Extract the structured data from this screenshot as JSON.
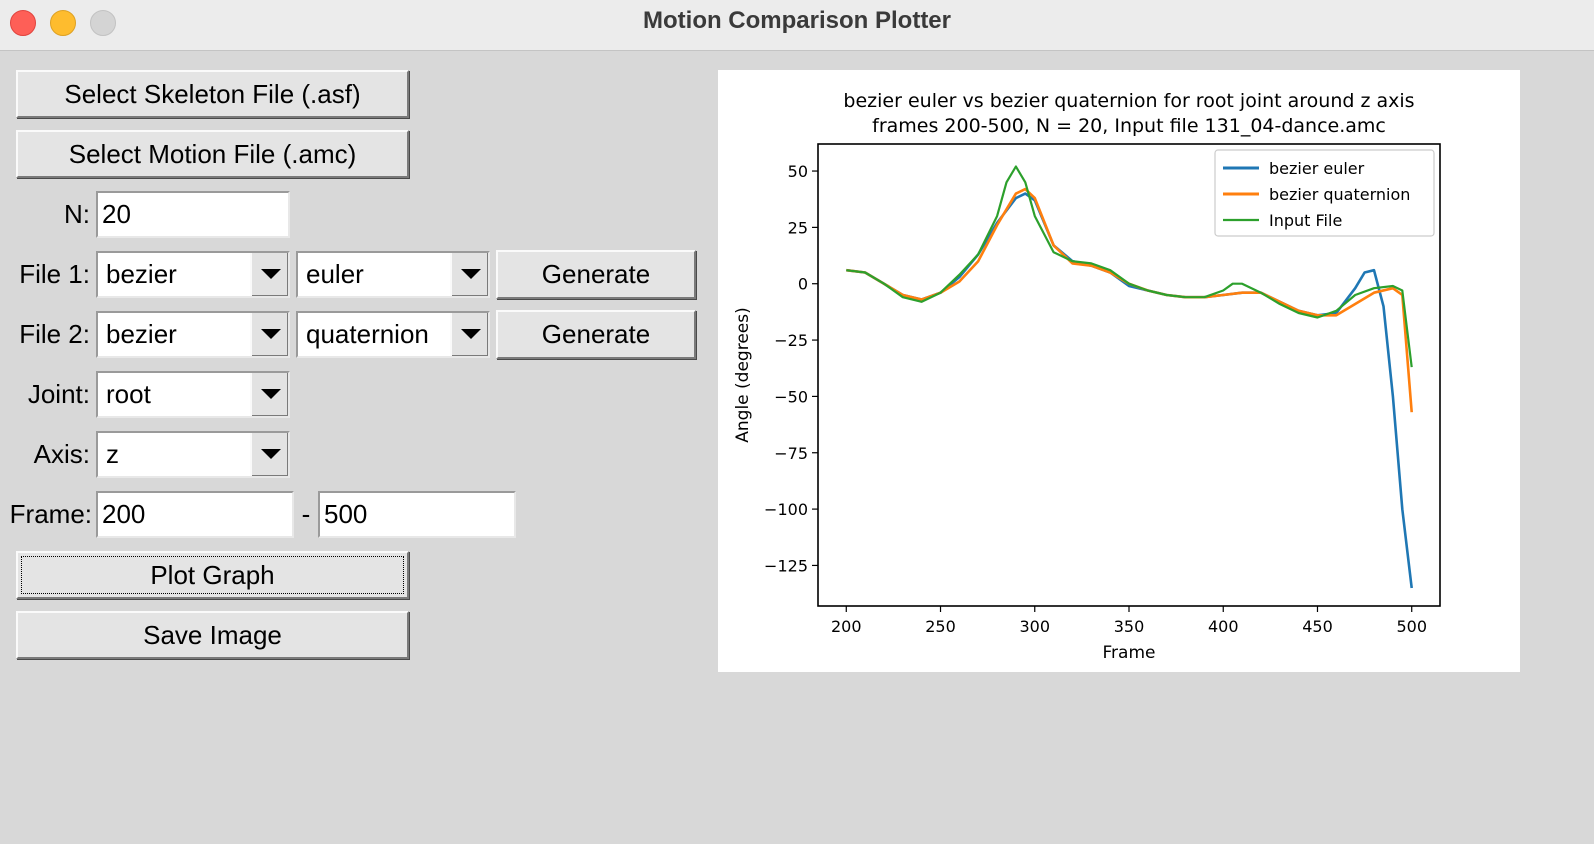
{
  "window": {
    "title": "Motion Comparison Plotter"
  },
  "buttons": {
    "select_skeleton": "Select Skeleton File (.asf)",
    "select_motion": "Select Motion File (.amc)",
    "generate1": "Generate",
    "generate2": "Generate",
    "plot": "Plot Graph",
    "save": "Save Image"
  },
  "form": {
    "n_label": "N:",
    "n_value": "20",
    "file1_label": "File 1:",
    "file1_method": "bezier",
    "file1_rep": "euler",
    "file2_label": "File 2:",
    "file2_method": "bezier",
    "file2_rep": "quaternion",
    "joint_label": "Joint:",
    "joint_value": "root",
    "axis_label": "Axis:",
    "axis_value": "z",
    "frame_label": "Frame:",
    "frame_start": "200",
    "frame_sep": "-",
    "frame_end": "500"
  },
  "chart_data": {
    "type": "line",
    "title": "bezier euler vs bezier quaternion for root joint around z axis",
    "subtitle": "frames 200-500, N = 20, Input file 131_04-dance.amc",
    "xlabel": "Frame",
    "ylabel": "Angle (degrees)",
    "xlim": [
      185,
      515
    ],
    "ylim": [
      -143,
      62
    ],
    "xticks": [
      200,
      250,
      300,
      350,
      400,
      450,
      500
    ],
    "yticks": [
      50,
      25,
      0,
      -25,
      -50,
      -75,
      -100,
      -125
    ],
    "xtick_labels": [
      "200",
      "250",
      "300",
      "350",
      "400",
      "450",
      "500"
    ],
    "ytick_labels": [
      "50",
      "25",
      "0",
      "−25",
      "−50",
      "−75",
      "−100",
      "−125"
    ],
    "legend_position": "top-right",
    "grid": false,
    "series": [
      {
        "name": "bezier euler",
        "color": "#1f77b4",
        "x": [
          200,
          210,
          220,
          230,
          240,
          250,
          260,
          270,
          280,
          290,
          295,
          300,
          310,
          320,
          330,
          340,
          350,
          360,
          370,
          380,
          390,
          400,
          410,
          420,
          430,
          440,
          450,
          460,
          470,
          475,
          480,
          485,
          490,
          495,
          500
        ],
        "y": [
          6,
          5,
          0,
          -5,
          -7,
          -4,
          3,
          13,
          27,
          38,
          40,
          37,
          17,
          10,
          8,
          5,
          -1,
          -3,
          -5,
          -6,
          -6,
          -5,
          -4,
          -4,
          -8,
          -12,
          -14,
          -13,
          -2,
          5,
          6,
          -10,
          -50,
          -100,
          -135
        ]
      },
      {
        "name": "bezier quaternion",
        "color": "#ff7f0e",
        "x": [
          200,
          210,
          220,
          230,
          240,
          250,
          260,
          270,
          280,
          290,
          295,
          300,
          310,
          320,
          330,
          340,
          350,
          360,
          370,
          380,
          390,
          400,
          410,
          420,
          430,
          440,
          450,
          460,
          470,
          480,
          490,
          495,
          500
        ],
        "y": [
          6,
          5,
          0,
          -5,
          -7,
          -4,
          1,
          10,
          26,
          40,
          42,
          38,
          17,
          9,
          8,
          5,
          0,
          -3,
          -5,
          -6,
          -6,
          -5,
          -4,
          -4,
          -8,
          -12,
          -14,
          -14,
          -9,
          -4,
          -2,
          -5,
          -57
        ]
      },
      {
        "name": "Input File",
        "color": "#2ca02c",
        "x": [
          200,
          210,
          220,
          230,
          240,
          250,
          260,
          270,
          280,
          285,
          290,
          295,
          300,
          310,
          320,
          330,
          340,
          350,
          360,
          370,
          380,
          390,
          400,
          405,
          410,
          415,
          420,
          430,
          440,
          450,
          460,
          470,
          480,
          490,
          495,
          500
        ],
        "y": [
          6,
          5,
          0,
          -6,
          -8,
          -4,
          4,
          13,
          30,
          45,
          52,
          45,
          30,
          14,
          10,
          9,
          6,
          0,
          -3,
          -5,
          -6,
          -6,
          -3,
          0,
          0,
          -2,
          -4,
          -9,
          -13,
          -15,
          -12,
          -5,
          -2,
          -1,
          -3,
          -37
        ]
      }
    ]
  }
}
